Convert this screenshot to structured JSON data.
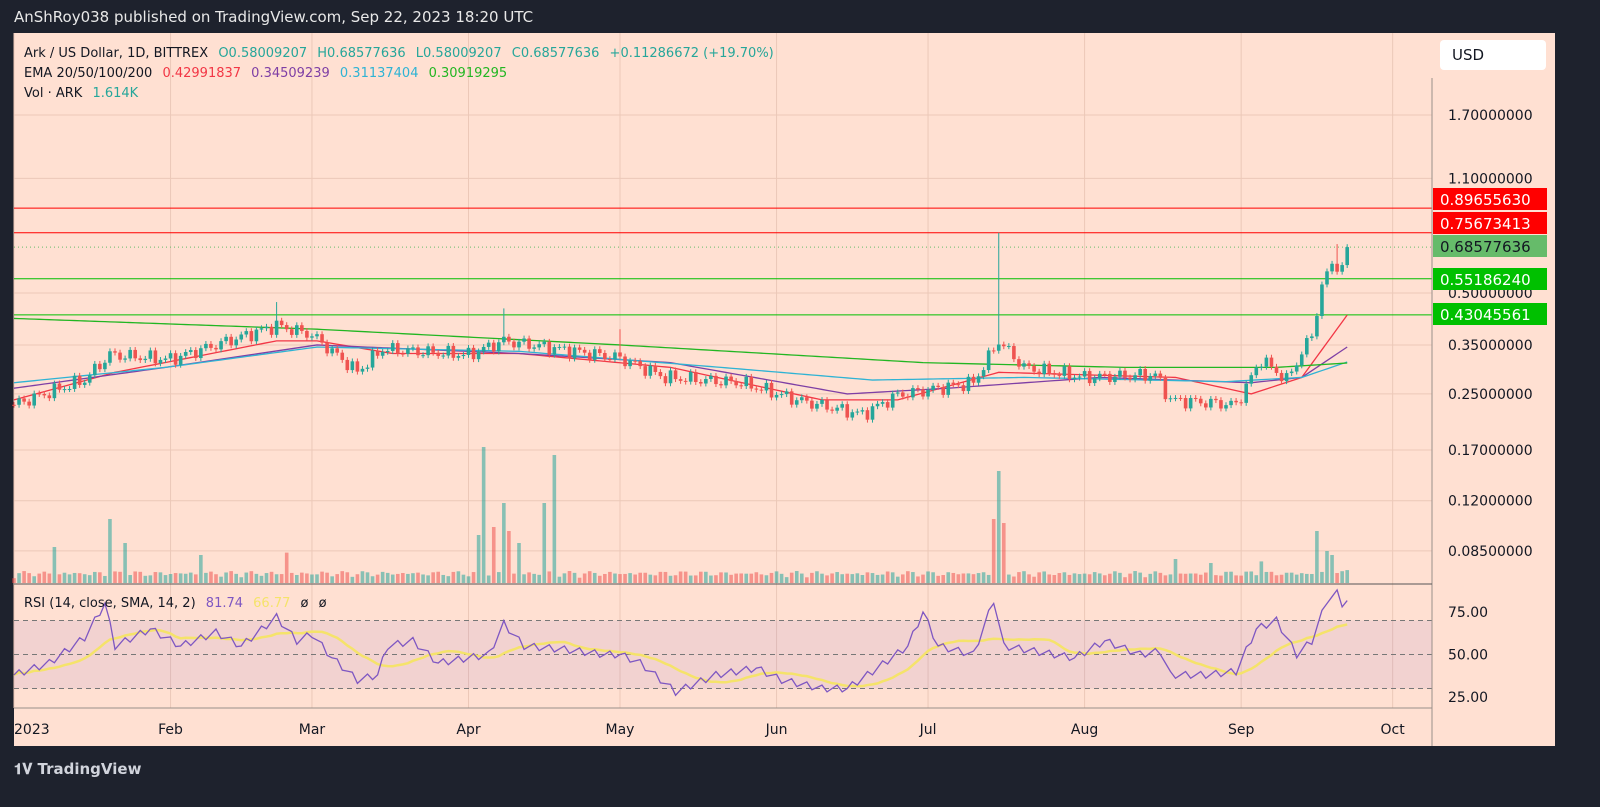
{
  "topbar": {
    "text": "AnShRoy038 published on TradingView.com, Sep 22, 2023 18:20 UTC"
  },
  "legend": {
    "symbol": "Ark / US Dollar, 1D, BITTREX",
    "open": "O0.58009207",
    "high": "H0.68577636",
    "low": "L0.58009207",
    "close": "C0.68577636",
    "change": "+0.11286672 (+19.70%)",
    "ema_label": "EMA 20/50/100/200",
    "ema_values": [
      "0.42991837",
      "0.34509239",
      "0.31137404",
      "0.30919295"
    ],
    "vol_label": "Vol · ARK",
    "vol_value": "1.614K"
  },
  "currency_button": "USD",
  "rsi_legend": {
    "label": "RSI (14, close, SMA, 14, 2)",
    "rsi": "81.74",
    "sma": "66.77",
    "ph1": "ø",
    "ph2": "ø"
  },
  "footer": {
    "brand": "TradingView"
  },
  "colors": {
    "up": "#26a69a",
    "down": "#ef5350",
    "ema20": "#f23645",
    "ema50": "#7e3fa5",
    "ema100": "#2fb3d4",
    "ema200": "#22b622",
    "rsi": "#7e57c2",
    "rsi_sma": "#f5e36a",
    "bg": "#ffe0d2"
  },
  "chart_data": {
    "type": "candlestick",
    "title": "Ark / US Dollar, 1D, BITTREX",
    "scale": "log",
    "price_ticks": [
      "1.70000000",
      "1.10000000",
      "0.50000000",
      "0.35000000",
      "0.25000000",
      "0.17000000",
      "0.12000000",
      "0.08500000"
    ],
    "x_ticks": [
      "2023",
      "Feb",
      "Mar",
      "Apr",
      "May",
      "Jun",
      "Jul",
      "Aug",
      "Sep",
      "Oct"
    ],
    "x_tick_days": [
      0,
      31,
      59,
      90,
      120,
      151,
      181,
      212,
      243,
      273
    ],
    "close_keypoints": [
      [
        0,
        0.232
      ],
      [
        14,
        0.275
      ],
      [
        19,
        0.327
      ],
      [
        31,
        0.317
      ],
      [
        40,
        0.35
      ],
      [
        52,
        0.4
      ],
      [
        59,
        0.375
      ],
      [
        68,
        0.291
      ],
      [
        73,
        0.34
      ],
      [
        90,
        0.327
      ],
      [
        97,
        0.36
      ],
      [
        120,
        0.32
      ],
      [
        129,
        0.28
      ],
      [
        144,
        0.27
      ],
      [
        155,
        0.24
      ],
      [
        168,
        0.217
      ],
      [
        175,
        0.248
      ],
      [
        190,
        0.27
      ],
      [
        195,
        0.36
      ],
      [
        200,
        0.3
      ],
      [
        212,
        0.28
      ],
      [
        226,
        0.285
      ],
      [
        229,
        0.24
      ],
      [
        242,
        0.232
      ],
      [
        247,
        0.317
      ],
      [
        252,
        0.275
      ],
      [
        257,
        0.375
      ],
      [
        259,
        0.52
      ],
      [
        261,
        0.62
      ],
      [
        263,
        0.58
      ],
      [
        264,
        0.68577636
      ]
    ],
    "wicks": [
      [
        195,
        0.75673413
      ],
      [
        52,
        0.47
      ],
      [
        97,
        0.45
      ],
      [
        120,
        0.39
      ],
      [
        262,
        0.7
      ]
    ],
    "ema_series": [
      {
        "name": "EMA 20",
        "points": [
          [
            0,
            0.24
          ],
          [
            20,
            0.29
          ],
          [
            52,
            0.36
          ],
          [
            60,
            0.36
          ],
          [
            75,
            0.33
          ],
          [
            100,
            0.33
          ],
          [
            130,
            0.3
          ],
          [
            160,
            0.24
          ],
          [
            175,
            0.24
          ],
          [
            195,
            0.29
          ],
          [
            230,
            0.28
          ],
          [
            245,
            0.25
          ],
          [
            255,
            0.28
          ],
          [
            264,
            0.42991837
          ]
        ]
      },
      {
        "name": "EMA 50",
        "points": [
          [
            0,
            0.26
          ],
          [
            30,
            0.3
          ],
          [
            60,
            0.35
          ],
          [
            100,
            0.33
          ],
          [
            130,
            0.31
          ],
          [
            165,
            0.25
          ],
          [
            185,
            0.26
          ],
          [
            215,
            0.28
          ],
          [
            245,
            0.27
          ],
          [
            255,
            0.28
          ],
          [
            264,
            0.34509239
          ]
        ]
      },
      {
        "name": "EMA 100",
        "points": [
          [
            0,
            0.27
          ],
          [
            30,
            0.3
          ],
          [
            60,
            0.345
          ],
          [
            100,
            0.335
          ],
          [
            140,
            0.3
          ],
          [
            170,
            0.275
          ],
          [
            200,
            0.28
          ],
          [
            240,
            0.272
          ],
          [
            255,
            0.28
          ],
          [
            264,
            0.31137404
          ]
        ]
      },
      {
        "name": "EMA 200",
        "points": [
          [
            0,
            0.42
          ],
          [
            60,
            0.39
          ],
          [
            120,
            0.35
          ],
          [
            180,
            0.31
          ],
          [
            220,
            0.3
          ],
          [
            250,
            0.3
          ],
          [
            264,
            0.30919295
          ]
        ]
      }
    ],
    "levels": [
      {
        "value": 0.8965563,
        "label": "0.89655630",
        "color": "#ff0000"
      },
      {
        "value": 0.75673413,
        "label": "0.75673413",
        "color": "#ff0000"
      },
      {
        "value": 0.68577636,
        "label": "0.68577636",
        "color": "#66bb6a",
        "dotted": true
      },
      {
        "value": 0.5518624,
        "label": "0.55186240",
        "color": "#00c000"
      },
      {
        "value": 0.43045561,
        "label": "0.43045561",
        "color": "#00c000"
      }
    ],
    "volume_spikes_k": [
      [
        19,
        8
      ],
      [
        8,
        4.5
      ],
      [
        22,
        5
      ],
      [
        37,
        3.5
      ],
      [
        54,
        3.8
      ],
      [
        92,
        6
      ],
      [
        93,
        17
      ],
      [
        95,
        7
      ],
      [
        97,
        10
      ],
      [
        98,
        6.5
      ],
      [
        100,
        5
      ],
      [
        105,
        10
      ],
      [
        107,
        16
      ],
      [
        194,
        8
      ],
      [
        195,
        14
      ],
      [
        196,
        7.5
      ],
      [
        230,
        3
      ],
      [
        237,
        2.5
      ],
      [
        247,
        2.7
      ],
      [
        258,
        6.5
      ],
      [
        260,
        4
      ],
      [
        261,
        3.5
      ],
      [
        264,
        1.614
      ]
    ],
    "rsi_ticks": [
      "75.00",
      "50.00",
      "25.00"
    ],
    "rsi_keypoints": [
      [
        0,
        38
      ],
      [
        7,
        45
      ],
      [
        14,
        60
      ],
      [
        18,
        80
      ],
      [
        20,
        55
      ],
      [
        27,
        65
      ],
      [
        33,
        55
      ],
      [
        40,
        63
      ],
      [
        45,
        55
      ],
      [
        52,
        72
      ],
      [
        56,
        58
      ],
      [
        59,
        62
      ],
      [
        63,
        48
      ],
      [
        68,
        35
      ],
      [
        72,
        38
      ],
      [
        74,
        55
      ],
      [
        79,
        58
      ],
      [
        84,
        45
      ],
      [
        90,
        48
      ],
      [
        94,
        50
      ],
      [
        97,
        68
      ],
      [
        101,
        55
      ],
      [
        109,
        53
      ],
      [
        117,
        50
      ],
      [
        120,
        50
      ],
      [
        124,
        45
      ],
      [
        131,
        28
      ],
      [
        139,
        38
      ],
      [
        147,
        42
      ],
      [
        152,
        35
      ],
      [
        160,
        30
      ],
      [
        165,
        30
      ],
      [
        170,
        40
      ],
      [
        177,
        55
      ],
      [
        180,
        75
      ],
      [
        183,
        55
      ],
      [
        190,
        50
      ],
      [
        194,
        82
      ],
      [
        196,
        55
      ],
      [
        202,
        52
      ],
      [
        210,
        48
      ],
      [
        216,
        58
      ],
      [
        223,
        50
      ],
      [
        227,
        52
      ],
      [
        229,
        38
      ],
      [
        236,
        38
      ],
      [
        242,
        40
      ],
      [
        246,
        65
      ],
      [
        250,
        70
      ],
      [
        254,
        50
      ],
      [
        257,
        58
      ],
      [
        260,
        82
      ],
      [
        262,
        86
      ],
      [
        263,
        80
      ],
      [
        264,
        81.74
      ]
    ]
  }
}
